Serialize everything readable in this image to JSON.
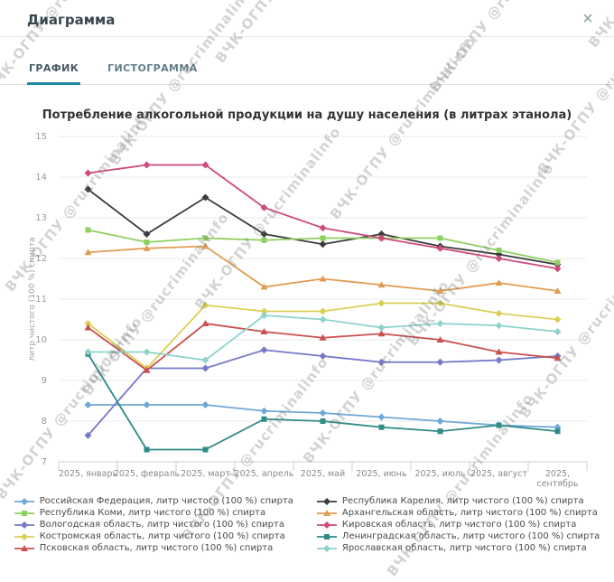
{
  "dialog": {
    "title": "Диаграмма",
    "close_icon": "×"
  },
  "tabs": [
    {
      "label": "ГРАФИК",
      "active": true
    },
    {
      "label": "ГИСТОГРАММА",
      "active": false
    }
  ],
  "watermark": {
    "text": "ВЧК-ОГПУ  @rucriminalinfo"
  },
  "chart_data": {
    "type": "line",
    "title": "Потребление алкогольной продукции на душу населения (в литрах этанола)",
    "xlabel": "",
    "ylabel": "литр чистого (100 %) спирта",
    "ylim": [
      7,
      15
    ],
    "ytick_step": 1,
    "grid": true,
    "legend_position": "bottom",
    "categories": [
      "2025, январь",
      "2025, февраль",
      "2025, март",
      "2025, апрель",
      "2025, май",
      "2025, июнь",
      "2025, июль",
      "2025, август",
      "2025, сентябрь"
    ],
    "series": [
      {
        "name": "Российская Федерация, литр чистого (100 %) спирта",
        "color": "#6fa8d6",
        "marker": "diamond",
        "values": [
          8.4,
          8.4,
          8.4,
          8.25,
          8.2,
          8.1,
          8.0,
          7.9,
          7.85
        ]
      },
      {
        "name": "Республика Карелия, литр чистого (100 %) спирта",
        "color": "#3b3b3b",
        "marker": "diamond",
        "values": [
          13.7,
          12.6,
          13.5,
          12.6,
          12.35,
          12.6,
          12.3,
          12.1,
          11.85
        ]
      },
      {
        "name": "Республика Коми, литр чистого (100 %) спирта",
        "color": "#8ed060",
        "marker": "square",
        "values": [
          12.7,
          12.4,
          12.5,
          12.45,
          12.5,
          12.5,
          12.5,
          12.2,
          11.9
        ]
      },
      {
        "name": "Архангельская область, литр чистого (100 %) спирта",
        "color": "#e09c52",
        "marker": "triangle",
        "values": [
          12.15,
          12.25,
          12.3,
          11.3,
          11.5,
          11.35,
          11.2,
          11.4,
          11.2
        ]
      },
      {
        "name": "Вологодская область, литр чистого (100 %) спирта",
        "color": "#7678c8",
        "marker": "diamond",
        "values": [
          7.65,
          9.3,
          9.3,
          9.75,
          9.6,
          9.45,
          9.45,
          9.5,
          9.6
        ]
      },
      {
        "name": "Кировская область, литр чистого (100 %) спирта",
        "color": "#cf4a7d",
        "marker": "diamond",
        "values": [
          14.1,
          14.3,
          14.3,
          13.25,
          12.75,
          12.5,
          12.25,
          12.0,
          11.75
        ]
      },
      {
        "name": "Костромская область, литр чистого (100 %) спирта",
        "color": "#dccf55",
        "marker": "diamond",
        "values": [
          10.4,
          9.3,
          10.85,
          10.7,
          10.7,
          10.9,
          10.9,
          10.65,
          10.5
        ]
      },
      {
        "name": "Ленинградская область, литр чистого (100 %) спирта",
        "color": "#2e8b85",
        "marker": "square",
        "values": [
          9.65,
          7.3,
          7.3,
          8.05,
          8.0,
          7.85,
          7.75,
          7.9,
          7.75
        ]
      },
      {
        "name": "Псковская область, литр чистого (100 %) спирта",
        "color": "#c9504c",
        "marker": "triangle",
        "values": [
          10.3,
          9.25,
          10.4,
          10.2,
          10.05,
          10.15,
          10.0,
          9.7,
          9.55
        ]
      },
      {
        "name": "Ярославская область, литр чистого (100 %) спирта",
        "color": "#8dd3cb",
        "marker": "diamond",
        "values": [
          9.7,
          9.7,
          9.5,
          10.6,
          10.5,
          10.3,
          10.4,
          10.35,
          10.2
        ]
      }
    ]
  }
}
